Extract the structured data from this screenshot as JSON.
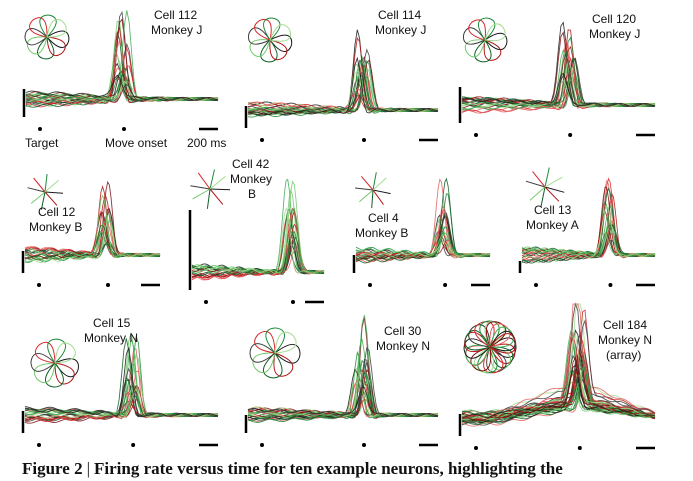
{
  "figure": {
    "caption_prefix": "Figure 2",
    "caption_text": "Firing rate versus time for ten example neurons, highlighting the"
  },
  "chart_data": [
    {
      "type": "line",
      "panel": 1,
      "cell": "Cell 112",
      "monkey": "Monkey J",
      "peak_time_frac": 0.5
    },
    {
      "type": "line",
      "panel": 2,
      "cell": "Cell 114",
      "monkey": "Monkey J",
      "peak_time_frac": 0.6
    },
    {
      "type": "line",
      "panel": 3,
      "cell": "Cell 120",
      "monkey": "Monkey J",
      "peak_time_frac": 0.55
    },
    {
      "type": "line",
      "panel": 4,
      "cell": "Cell 12",
      "monkey": "Monkey B",
      "peak_time_frac": 0.6
    },
    {
      "type": "line",
      "panel": 5,
      "cell": "Cell 42",
      "monkey": "Monkey B",
      "peak_time_frac": 0.75
    },
    {
      "type": "line",
      "panel": 6,
      "cell": "Cell 4",
      "monkey": "Monkey B",
      "peak_time_frac": 0.65
    },
    {
      "type": "line",
      "panel": 7,
      "cell": "Cell 13",
      "monkey": "Monkey A",
      "peak_time_frac": 0.65
    },
    {
      "type": "line",
      "panel": 8,
      "cell": "Cell 15",
      "monkey": "Monkey N",
      "peak_time_frac": 0.55
    },
    {
      "type": "line",
      "panel": 9,
      "cell": "Cell 30",
      "monkey": "Monkey N",
      "peak_time_frac": 0.6
    },
    {
      "type": "line",
      "panel": 10,
      "cell": "Cell 184",
      "monkey": "Monkey N (array)",
      "peak_time_frac": 0.6
    }
  ],
  "axis_labels": {
    "target": "Target",
    "move_onset": "Move onset",
    "time_scale": "200 ms"
  },
  "colors": {
    "traces": [
      "#1a1a1a",
      "#3d3d3d",
      "#7a1010",
      "#b01515",
      "#d8262a",
      "#e56060",
      "#0f5e26",
      "#1f8a3a",
      "#3fae4f",
      "#72c96a",
      "#a2dd8f"
    ]
  }
}
